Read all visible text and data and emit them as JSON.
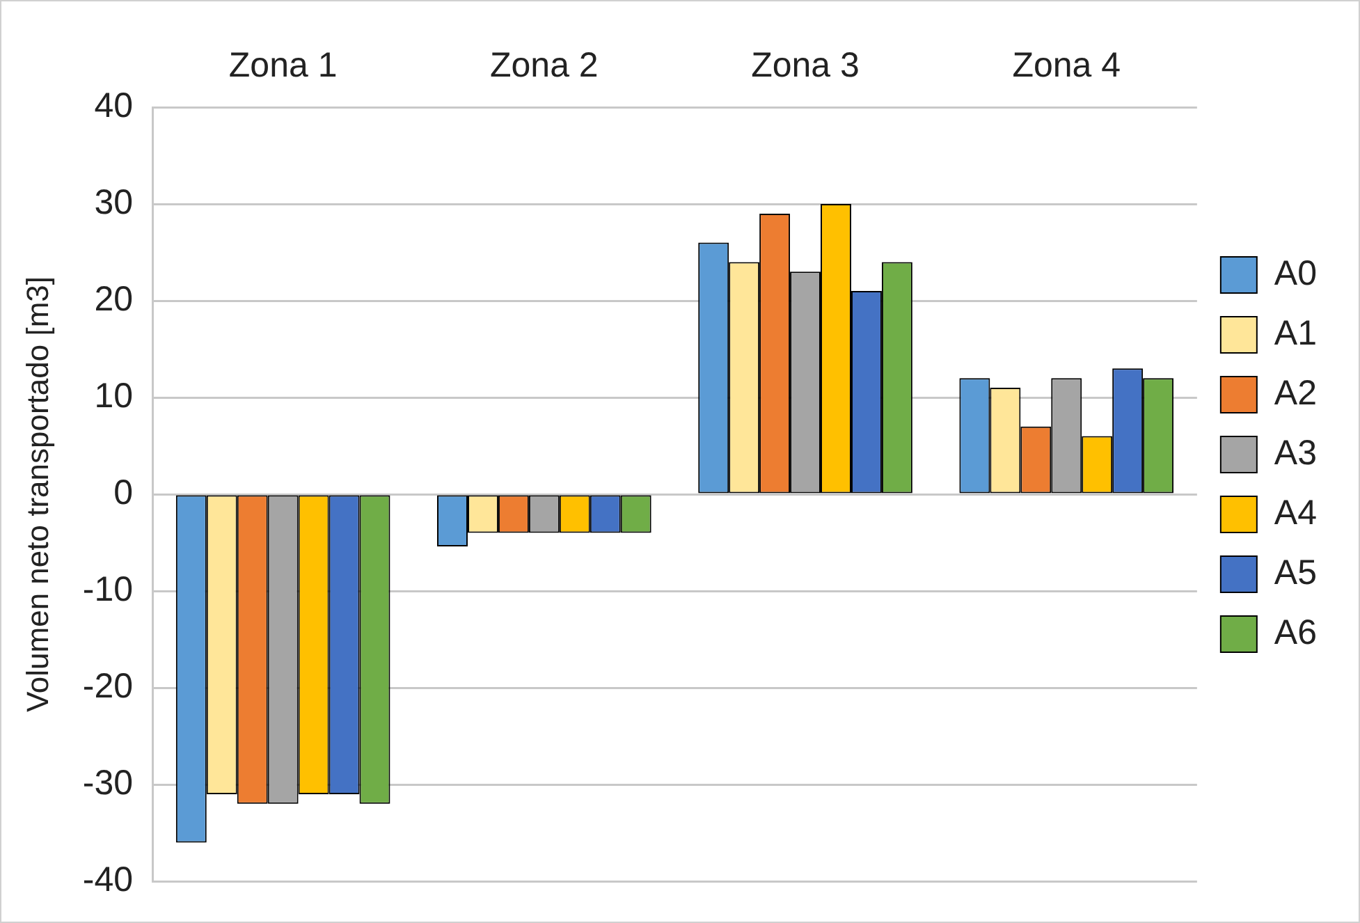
{
  "chart_data": {
    "type": "bar",
    "ylabel": "Volumen neto transportado [m3]",
    "categories": [
      "Zona 1",
      "Zona 2",
      "Zona 3",
      "Zona 4"
    ],
    "series": [
      {
        "name": "A0",
        "color": "#5b9bd5",
        "values": [
          -36,
          -5.4,
          26,
          12
        ]
      },
      {
        "name": "A1",
        "color": "#ffe699",
        "values": [
          -31,
          -4,
          24,
          11
        ]
      },
      {
        "name": "A2",
        "color": "#ed7d31",
        "values": [
          -32,
          -4,
          29,
          7
        ]
      },
      {
        "name": "A3",
        "color": "#a5a5a5",
        "values": [
          -32,
          -4,
          23,
          12
        ]
      },
      {
        "name": "A4",
        "color": "#ffc000",
        "values": [
          -31,
          -4,
          30,
          6
        ]
      },
      {
        "name": "A5",
        "color": "#4472c4",
        "values": [
          -31,
          -4,
          21,
          13
        ]
      },
      {
        "name": "A6",
        "color": "#70ad47",
        "values": [
          -32,
          -4,
          24,
          12
        ]
      }
    ],
    "ylim": [
      -40,
      40
    ],
    "yticks": [
      -40,
      -30,
      -20,
      -10,
      0,
      10,
      20,
      30,
      40
    ],
    "grid": "y",
    "legend": "right"
  }
}
